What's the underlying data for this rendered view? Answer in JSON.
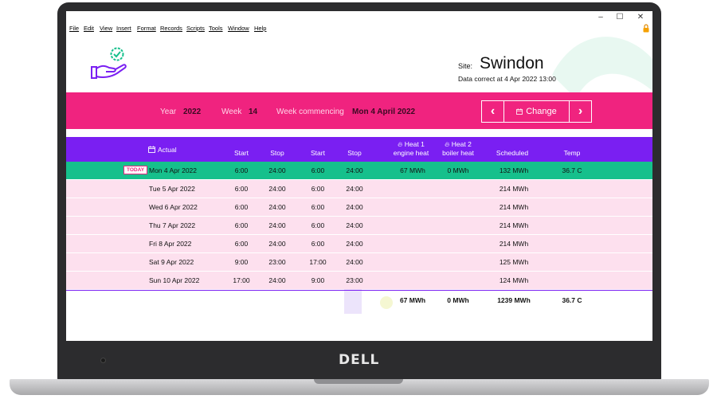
{
  "device": {
    "brand": "DELL"
  },
  "window": {
    "controls": {
      "minimize": "–",
      "maximize": "☐",
      "close": "✕"
    }
  },
  "menubar": {
    "items": [
      "File",
      "Edit",
      "View",
      "Insert",
      "Format",
      "Records",
      "Scripts",
      "Tools",
      "Window",
      "Help"
    ]
  },
  "header": {
    "site_label": "Site:",
    "site_name": "Swindon",
    "data_correct": "Data correct at 4 Apr 2022 13:00"
  },
  "weekbar": {
    "year_label": "Year",
    "year_value": "2022",
    "week_label": "Week",
    "week_value": "14",
    "commencing_label": "Week commencing",
    "commencing_value": "Mon 4 April 2022",
    "prev_label": "‹",
    "change_label": "Change",
    "next_label": "›"
  },
  "table": {
    "headers": {
      "actual": "Actual",
      "start1": "Start",
      "stop1": "Stop",
      "start2": "Start",
      "stop2": "Stop",
      "heat1_line1": "Heat 1",
      "heat1_line2": "engine heat",
      "heat2_line1": "Heat 2",
      "heat2_line2": "boiler heat",
      "scheduled": "Scheduled",
      "temp": "Temp"
    },
    "today_badge": "TODAY",
    "rows": [
      {
        "date": "Mon 4 Apr 2022",
        "start1": "6:00",
        "stop1": "24:00",
        "start2": "6:00",
        "stop2": "24:00",
        "heat1": "67 MWh",
        "heat2": "0 MWh",
        "scheduled": "132 MWh",
        "temp": "36.7 C"
      },
      {
        "date": "Tue 5 Apr 2022",
        "start1": "6:00",
        "stop1": "24:00",
        "start2": "6:00",
        "stop2": "24:00",
        "heat1": "",
        "heat2": "",
        "scheduled": "214 MWh",
        "temp": ""
      },
      {
        "date": "Wed 6 Apr 2022",
        "start1": "6:00",
        "stop1": "24:00",
        "start2": "6:00",
        "stop2": "24:00",
        "heat1": "",
        "heat2": "",
        "scheduled": "214 MWh",
        "temp": ""
      },
      {
        "date": "Thu 7 Apr 2022",
        "start1": "6:00",
        "stop1": "24:00",
        "start2": "6:00",
        "stop2": "24:00",
        "heat1": "",
        "heat2": "",
        "scheduled": "214 MWh",
        "temp": ""
      },
      {
        "date": "Fri 8 Apr 2022",
        "start1": "6:00",
        "stop1": "24:00",
        "start2": "6:00",
        "stop2": "24:00",
        "heat1": "",
        "heat2": "",
        "scheduled": "214 MWh",
        "temp": ""
      },
      {
        "date": "Sat 9 Apr 2022",
        "start1": "9:00",
        "stop1": "23:00",
        "start2": "17:00",
        "stop2": "24:00",
        "heat1": "",
        "heat2": "",
        "scheduled": "125 MWh",
        "temp": ""
      },
      {
        "date": "Sun 10 Apr 2022",
        "start1": "17:00",
        "stop1": "24:00",
        "start2": "9:00",
        "stop2": "23:00",
        "heat1": "",
        "heat2": "",
        "scheduled": "124 MWh",
        "temp": ""
      }
    ],
    "totals": {
      "heat1": "67 MWh",
      "heat2": "0 MWh",
      "scheduled": "1239 MWh",
      "temp": "36.7 C"
    }
  },
  "colors": {
    "accent_pink": "#f0237f",
    "header_purple": "#7a1ff2",
    "today_green": "#16c08c",
    "row_pink": "#fde0ee"
  }
}
